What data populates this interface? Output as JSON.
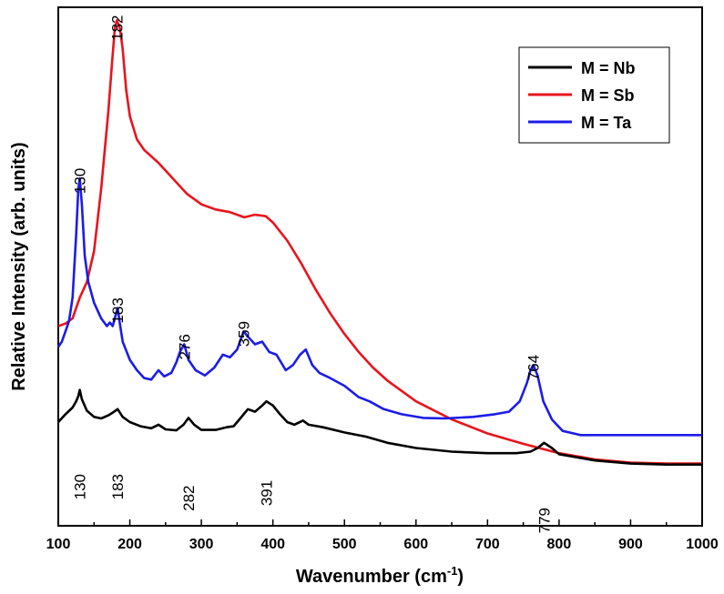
{
  "chart_data": {
    "type": "line",
    "title": "",
    "xlabel": "Wavenumber (cm",
    "xlabel_sup": "-1",
    "xlabel_tail": ")",
    "ylabel": "Relative Intensity (arb. units)",
    "xlim": [
      100,
      1000
    ],
    "ylim": [
      0,
      1
    ],
    "x_ticks": [
      100,
      200,
      300,
      400,
      500,
      600,
      700,
      800,
      900,
      1000
    ],
    "y_ticks_shown": false,
    "grid": false,
    "legend_position": "top-right",
    "series": [
      {
        "name": "M = Nb",
        "color": "#000000",
        "points": [
          [
            100,
            0.2
          ],
          [
            110,
            0.215
          ],
          [
            120,
            0.228
          ],
          [
            125,
            0.24
          ],
          [
            128,
            0.25
          ],
          [
            130,
            0.262
          ],
          [
            133,
            0.244
          ],
          [
            140,
            0.222
          ],
          [
            150,
            0.21
          ],
          [
            160,
            0.207
          ],
          [
            170,
            0.213
          ],
          [
            178,
            0.22
          ],
          [
            183,
            0.225
          ],
          [
            190,
            0.21
          ],
          [
            200,
            0.2
          ],
          [
            215,
            0.192
          ],
          [
            230,
            0.188
          ],
          [
            240,
            0.195
          ],
          [
            250,
            0.186
          ],
          [
            265,
            0.184
          ],
          [
            275,
            0.195
          ],
          [
            282,
            0.208
          ],
          [
            290,
            0.195
          ],
          [
            300,
            0.185
          ],
          [
            320,
            0.185
          ],
          [
            335,
            0.19
          ],
          [
            345,
            0.192
          ],
          [
            355,
            0.208
          ],
          [
            365,
            0.225
          ],
          [
            375,
            0.22
          ],
          [
            385,
            0.232
          ],
          [
            391,
            0.24
          ],
          [
            400,
            0.232
          ],
          [
            410,
            0.215
          ],
          [
            420,
            0.2
          ],
          [
            430,
            0.195
          ],
          [
            442,
            0.203
          ],
          [
            450,
            0.195
          ],
          [
            470,
            0.19
          ],
          [
            500,
            0.18
          ],
          [
            530,
            0.172
          ],
          [
            560,
            0.16
          ],
          [
            600,
            0.15
          ],
          [
            650,
            0.143
          ],
          [
            700,
            0.14
          ],
          [
            740,
            0.14
          ],
          [
            760,
            0.143
          ],
          [
            770,
            0.15
          ],
          [
            779,
            0.16
          ],
          [
            790,
            0.15
          ],
          [
            800,
            0.138
          ],
          [
            850,
            0.126
          ],
          [
            900,
            0.12
          ],
          [
            950,
            0.118
          ],
          [
            1000,
            0.118
          ]
        ]
      },
      {
        "name": "M = Sb",
        "color": "#e8141c",
        "points": [
          [
            100,
            0.385
          ],
          [
            110,
            0.39
          ],
          [
            120,
            0.4
          ],
          [
            130,
            0.44
          ],
          [
            140,
            0.47
          ],
          [
            150,
            0.53
          ],
          [
            160,
            0.65
          ],
          [
            170,
            0.8
          ],
          [
            175,
            0.89
          ],
          [
            179,
            0.96
          ],
          [
            182,
            0.975
          ],
          [
            186,
            0.96
          ],
          [
            190,
            0.92
          ],
          [
            195,
            0.84
          ],
          [
            200,
            0.79
          ],
          [
            210,
            0.745
          ],
          [
            220,
            0.725
          ],
          [
            240,
            0.7
          ],
          [
            260,
            0.67
          ],
          [
            280,
            0.64
          ],
          [
            300,
            0.62
          ],
          [
            320,
            0.61
          ],
          [
            340,
            0.605
          ],
          [
            360,
            0.595
          ],
          [
            375,
            0.6
          ],
          [
            390,
            0.597
          ],
          [
            400,
            0.585
          ],
          [
            420,
            0.55
          ],
          [
            440,
            0.505
          ],
          [
            460,
            0.455
          ],
          [
            480,
            0.41
          ],
          [
            500,
            0.37
          ],
          [
            520,
            0.335
          ],
          [
            540,
            0.305
          ],
          [
            560,
            0.28
          ],
          [
            600,
            0.24
          ],
          [
            650,
            0.205
          ],
          [
            700,
            0.178
          ],
          [
            750,
            0.158
          ],
          [
            800,
            0.14
          ],
          [
            850,
            0.128
          ],
          [
            900,
            0.122
          ],
          [
            950,
            0.12
          ],
          [
            1000,
            0.12
          ]
        ]
      },
      {
        "name": "M = Ta",
        "color": "#1c1ce8",
        "points": [
          [
            100,
            0.345
          ],
          [
            105,
            0.355
          ],
          [
            110,
            0.375
          ],
          [
            115,
            0.395
          ],
          [
            120,
            0.44
          ],
          [
            125,
            0.56
          ],
          [
            128,
            0.65
          ],
          [
            130,
            0.67
          ],
          [
            133,
            0.62
          ],
          [
            137,
            0.52
          ],
          [
            142,
            0.47
          ],
          [
            150,
            0.43
          ],
          [
            160,
            0.4
          ],
          [
            168,
            0.385
          ],
          [
            172,
            0.392
          ],
          [
            176,
            0.385
          ],
          [
            180,
            0.405
          ],
          [
            183,
            0.42
          ],
          [
            186,
            0.39
          ],
          [
            190,
            0.355
          ],
          [
            200,
            0.32
          ],
          [
            210,
            0.3
          ],
          [
            220,
            0.285
          ],
          [
            230,
            0.282
          ],
          [
            240,
            0.3
          ],
          [
            248,
            0.288
          ],
          [
            258,
            0.295
          ],
          [
            265,
            0.315
          ],
          [
            270,
            0.335
          ],
          [
            276,
            0.35
          ],
          [
            282,
            0.32
          ],
          [
            292,
            0.3
          ],
          [
            305,
            0.29
          ],
          [
            318,
            0.305
          ],
          [
            330,
            0.33
          ],
          [
            340,
            0.325
          ],
          [
            350,
            0.34
          ],
          [
            359,
            0.375
          ],
          [
            365,
            0.365
          ],
          [
            375,
            0.35
          ],
          [
            385,
            0.355
          ],
          [
            395,
            0.335
          ],
          [
            405,
            0.33
          ],
          [
            418,
            0.3
          ],
          [
            428,
            0.31
          ],
          [
            438,
            0.33
          ],
          [
            446,
            0.34
          ],
          [
            455,
            0.31
          ],
          [
            465,
            0.295
          ],
          [
            480,
            0.285
          ],
          [
            500,
            0.27
          ],
          [
            520,
            0.248
          ],
          [
            535,
            0.24
          ],
          [
            555,
            0.225
          ],
          [
            580,
            0.215
          ],
          [
            610,
            0.208
          ],
          [
            640,
            0.207
          ],
          [
            680,
            0.21
          ],
          [
            710,
            0.215
          ],
          [
            730,
            0.22
          ],
          [
            745,
            0.24
          ],
          [
            755,
            0.275
          ],
          [
            760,
            0.3
          ],
          [
            764,
            0.31
          ],
          [
            770,
            0.29
          ],
          [
            778,
            0.24
          ],
          [
            790,
            0.205
          ],
          [
            805,
            0.183
          ],
          [
            830,
            0.175
          ],
          [
            870,
            0.175
          ],
          [
            950,
            0.175
          ],
          [
            1000,
            0.175
          ]
        ]
      }
    ],
    "annotations": [
      {
        "text": "182",
        "x": 182,
        "y": 0.985,
        "rotate": -90
      },
      {
        "text": "130",
        "x": 130,
        "y": 0.69,
        "rotate": -90
      },
      {
        "text": "183",
        "x": 183,
        "y": 0.44,
        "rotate": -90
      },
      {
        "text": "276",
        "x": 276,
        "y": 0.37,
        "rotate": -90
      },
      {
        "text": "359",
        "x": 359,
        "y": 0.395,
        "rotate": -90
      },
      {
        "text": "764",
        "x": 764,
        "y": 0.33,
        "rotate": -90
      },
      {
        "text": "130",
        "x": 130,
        "y": 0.1,
        "rotate": -90
      },
      {
        "text": "183",
        "x": 183,
        "y": 0.1,
        "rotate": -90
      },
      {
        "text": "282",
        "x": 282,
        "y": 0.078,
        "rotate": -90
      },
      {
        "text": "391",
        "x": 391,
        "y": 0.088,
        "rotate": -90
      },
      {
        "text": "779",
        "x": 779,
        "y": 0.035,
        "rotate": -90
      }
    ]
  }
}
